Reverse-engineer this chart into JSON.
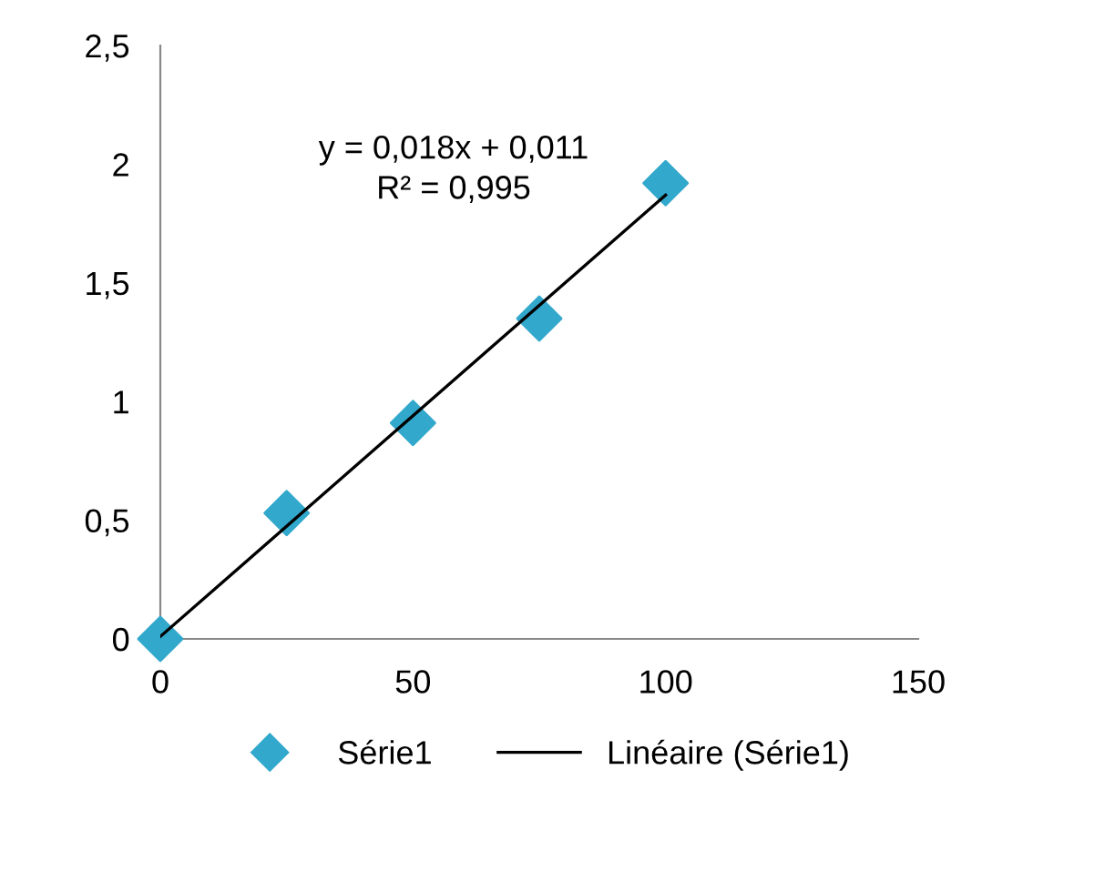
{
  "chart_data": {
    "type": "scatter",
    "x": [
      0,
      25,
      50,
      75,
      100
    ],
    "series": [
      {
        "name": "Série1",
        "color": "#31a8cc",
        "marker": "diamond",
        "values": [
          0,
          0.53,
          0.91,
          1.35,
          1.92
        ]
      },
      {
        "name": "Linéaire (Série1)",
        "type": "line",
        "color": "#000000",
        "x": [
          0,
          100
        ],
        "values": [
          0.01,
          1.87
        ]
      }
    ],
    "xlim": [
      0,
      150
    ],
    "xticks": [
      0,
      50,
      100,
      150
    ],
    "ylim": [
      0,
      2.5
    ],
    "yticks": [
      0,
      {
        "value": 0.5,
        "label": "0,5"
      },
      1,
      {
        "value": 1.5,
        "label": "1,5"
      },
      2,
      {
        "value": 2.5,
        "label": "2,5"
      }
    ],
    "annotations": [
      "y = 0,018x + 0,011\nR² = 0,995"
    ],
    "grid": false,
    "legend": "bottom"
  }
}
